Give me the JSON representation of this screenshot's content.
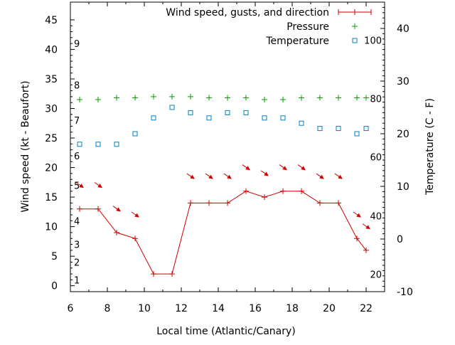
{
  "chart_data": {
    "type": "line",
    "xlabel": "Local time (Atlantic/Canary)",
    "ylabel": "Wind speed (kt - Beaufort)",
    "y2label": "Temperature (C - F)",
    "xlim": [
      6,
      23
    ],
    "ylim": [
      -1,
      48
    ],
    "y2lim": [
      -10,
      45
    ],
    "x_ticks": [
      "6",
      "8",
      "10",
      "12",
      "14",
      "16",
      "18",
      "20",
      "22"
    ],
    "y_ticks": [
      "0",
      "5",
      "10",
      "15",
      "20",
      "25",
      "30",
      "35",
      "40",
      "45"
    ],
    "y2_ticks": [
      "-10",
      "0",
      "10",
      "20",
      "30",
      "40"
    ],
    "beaufort_scale": [
      {
        "label": "1",
        "kt": 1
      },
      {
        "label": "2",
        "kt": 4
      },
      {
        "label": "3",
        "kt": 7
      },
      {
        "label": "4",
        "kt": 11
      },
      {
        "label": "5",
        "kt": 17
      },
      {
        "label": "6",
        "kt": 22
      },
      {
        "label": "7",
        "kt": 28
      },
      {
        "label": "8",
        "kt": 34
      },
      {
        "label": "9",
        "kt": 41
      }
    ],
    "fahrenheit_scale": [
      {
        "label": "20",
        "c": -6.7
      },
      {
        "label": "40",
        "c": 4.4
      },
      {
        "label": "60",
        "c": 15.6
      },
      {
        "label": "80",
        "c": 26.7
      },
      {
        "label": "100",
        "c": 37.8
      }
    ],
    "legend_position": "top-right",
    "colors": {
      "wind": "#cc0000",
      "pressure": "#00a000",
      "temperature": "#0080c0",
      "axes": "#000000"
    },
    "series": [
      {
        "name": "Wind speed, gusts, and direction",
        "marker": "plus-line",
        "x": [
          6.5,
          7.5,
          8.5,
          9.5,
          10.5,
          11.5,
          12.5,
          13.5,
          14.5,
          15.5,
          16.5,
          17.5,
          18.5,
          19.5,
          20.5,
          21.5,
          22.0
        ],
        "values": [
          13,
          13,
          9,
          8,
          2,
          2,
          14,
          14,
          14,
          16,
          15,
          16,
          16,
          14,
          14,
          8,
          6
        ],
        "direction_arrows_y": [
          17,
          17,
          13,
          12,
          null,
          null,
          18.5,
          18.5,
          18.5,
          20,
          19,
          20,
          20,
          18.5,
          18.5,
          12,
          10
        ]
      },
      {
        "name": "Pressure",
        "marker": "plus",
        "axis": "left",
        "x": [
          6.5,
          7.5,
          8.5,
          9.5,
          10.5,
          11.5,
          12.5,
          13.5,
          14.5,
          15.5,
          16.5,
          17.5,
          18.5,
          19.5,
          20.5,
          21.5,
          22.0
        ],
        "values": [
          31.5,
          31.5,
          31.8,
          31.8,
          32,
          32,
          32,
          31.8,
          31.8,
          31.8,
          31.5,
          31.5,
          31.8,
          31.8,
          31.8,
          31.8,
          31.8
        ]
      },
      {
        "name": "Temperature",
        "marker": "square",
        "axis": "right",
        "x": [
          6.5,
          7.5,
          8.5,
          9.5,
          10.5,
          11.5,
          12.5,
          13.5,
          14.5,
          15.5,
          16.5,
          17.5,
          18.5,
          19.5,
          20.5,
          21.5,
          22.0
        ],
        "values": [
          18,
          18,
          18,
          20,
          23,
          25,
          24,
          23,
          24,
          24,
          23,
          23,
          22,
          21,
          21,
          20,
          21
        ]
      }
    ]
  }
}
